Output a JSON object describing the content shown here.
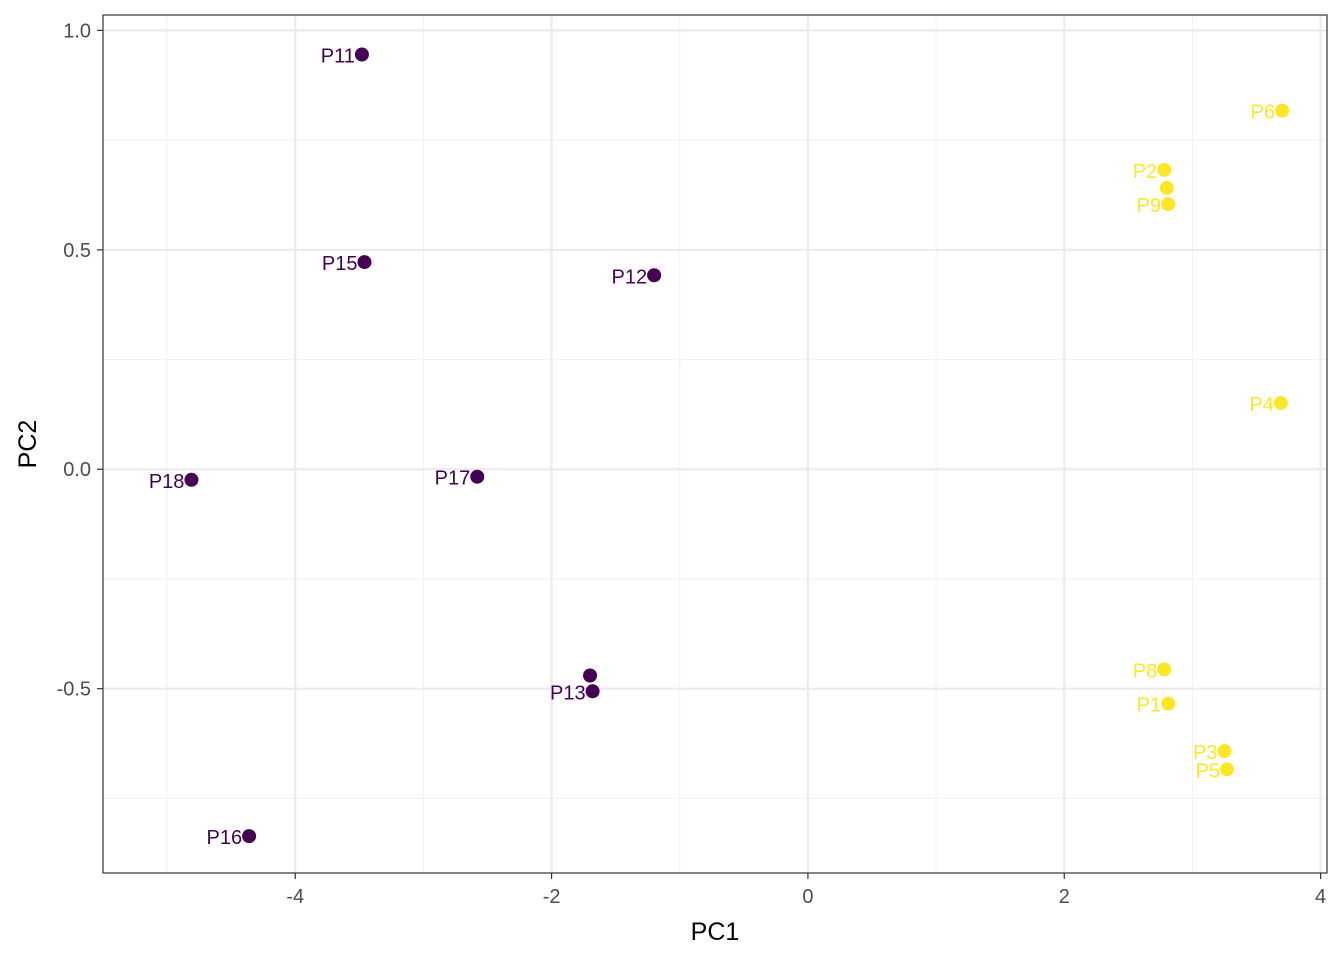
{
  "chart_data": {
    "type": "scatter",
    "title": "",
    "xlabel": "PC1",
    "ylabel": "PC2",
    "xlim": [
      -5.5,
      4.05
    ],
    "ylim": [
      -0.92,
      1.035
    ],
    "xticks": [
      -4,
      -2,
      0,
      2,
      4
    ],
    "xtick_labels": [
      "-4",
      "-2",
      "0",
      "2",
      "4"
    ],
    "yticks": [
      -0.5,
      0.0,
      0.5,
      1.0
    ],
    "ytick_labels": [
      "-0.5",
      "0.0",
      "0.5",
      "1.0"
    ],
    "x_minor_ticks": [
      -5,
      -3,
      -1,
      1,
      3
    ],
    "y_minor_ticks": [
      -0.75,
      -0.25,
      0.25,
      0.75
    ],
    "grid": true,
    "legend": "none",
    "colors": {
      "group_a": "#440154",
      "group_b": "#FDE725",
      "grid_major": "#EBEBEB",
      "grid_minor": "#F2F2F2",
      "panel_border": "#333333",
      "axis_text": "#4D4D4D",
      "axis_title": "#000000"
    },
    "points": [
      {
        "label": "P11",
        "x": -3.48,
        "y": 0.945,
        "group": "group_a",
        "show_label": true
      },
      {
        "label": "P15",
        "x": -3.46,
        "y": 0.472,
        "group": "group_a",
        "show_label": true
      },
      {
        "label": "P12",
        "x": -1.2,
        "y": 0.442,
        "group": "group_a",
        "show_label": true
      },
      {
        "label": "P18",
        "x": -4.81,
        "y": -0.024,
        "group": "group_a",
        "show_label": true
      },
      {
        "label": "P17",
        "x": -2.58,
        "y": -0.017,
        "group": "group_a",
        "show_label": true
      },
      {
        "label": "",
        "x": -1.7,
        "y": -0.47,
        "group": "group_a",
        "show_label": false
      },
      {
        "label": "P13",
        "x": -1.68,
        "y": -0.506,
        "group": "group_a",
        "show_label": true
      },
      {
        "label": "P16",
        "x": -4.36,
        "y": -0.836,
        "group": "group_a",
        "show_label": true
      },
      {
        "label": "P6",
        "x": 3.7,
        "y": 0.817,
        "group": "group_b",
        "show_label": true
      },
      {
        "label": "P2",
        "x": 2.78,
        "y": 0.682,
        "group": "group_b",
        "show_label": true
      },
      {
        "label": "",
        "x": 2.8,
        "y": 0.641,
        "group": "group_b",
        "show_label": false
      },
      {
        "label": "P9",
        "x": 2.81,
        "y": 0.604,
        "group": "group_b",
        "show_label": true
      },
      {
        "label": "P4",
        "x": 3.69,
        "y": 0.151,
        "group": "group_b",
        "show_label": true
      },
      {
        "label": "P8",
        "x": 2.78,
        "y": -0.456,
        "group": "group_b",
        "show_label": true
      },
      {
        "label": "P1",
        "x": 2.81,
        "y": -0.534,
        "group": "group_b",
        "show_label": true
      },
      {
        "label": "P3",
        "x": 3.25,
        "y": -0.642,
        "group": "group_b",
        "show_label": true
      },
      {
        "label": "P5",
        "x": 3.27,
        "y": -0.684,
        "group": "group_b",
        "show_label": true
      }
    ]
  }
}
